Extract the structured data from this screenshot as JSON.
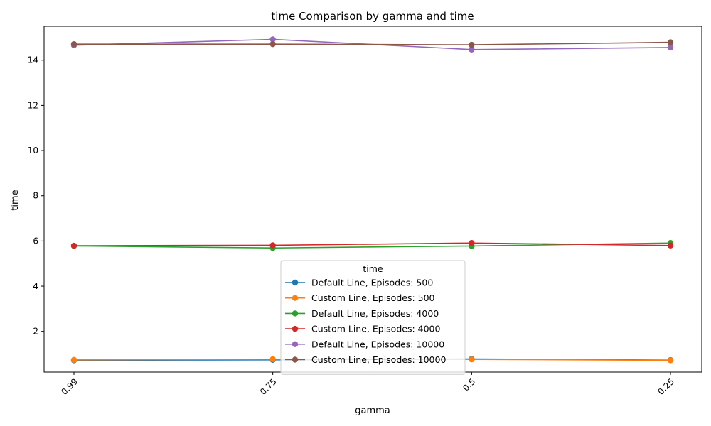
{
  "chart_data": {
    "type": "line",
    "title": "time Comparison by gamma and time",
    "xlabel": "gamma",
    "ylabel": "time",
    "categories": [
      "0.99",
      "0.75",
      "0.5",
      "0.25"
    ],
    "ylim": [
      0.2,
      15.5
    ],
    "yticks": [
      2,
      4,
      6,
      8,
      10,
      12,
      14
    ],
    "grid": false,
    "legend": {
      "title": "time",
      "placement": "lower-center"
    },
    "series": [
      {
        "name": "Default Line, Episodes: 500",
        "color": "#1f77b4",
        "values": [
          0.72,
          0.74,
          0.78,
          0.73
        ]
      },
      {
        "name": "Custom Line, Episodes: 500",
        "color": "#ff7f0e",
        "values": [
          0.74,
          0.77,
          0.76,
          0.72
        ]
      },
      {
        "name": "Default Line, Episodes: 4000",
        "color": "#2ca02c",
        "values": [
          5.78,
          5.69,
          5.78,
          5.91
        ]
      },
      {
        "name": "Custom Line, Episodes: 4000",
        "color": "#d62728",
        "values": [
          5.79,
          5.81,
          5.91,
          5.8
        ]
      },
      {
        "name": "Default Line, Episodes: 10000",
        "color": "#9467bd",
        "values": [
          14.66,
          14.92,
          14.47,
          14.56
        ]
      },
      {
        "name": "Custom Line, Episodes: 10000",
        "color": "#8c564b",
        "values": [
          14.71,
          14.71,
          14.68,
          14.79
        ]
      }
    ]
  }
}
